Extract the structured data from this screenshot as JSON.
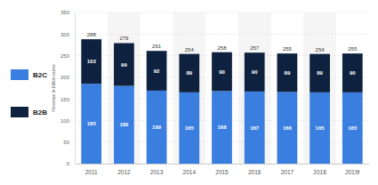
{
  "chart_data": {
    "type": "bar",
    "stacked": true,
    "data_labels": true,
    "grid": true,
    "legend": "left",
    "y_label": "Revenue in billion euros",
    "categories": [
      "2011",
      "2012",
      "2013",
      "2014",
      "2015",
      "2016",
      "2017",
      "2018",
      "2019f"
    ],
    "series": [
      {
        "name": "B2C",
        "color": "#3a7ee0",
        "values": [
          185,
          180,
          169,
          165,
          168,
          167,
          166,
          165,
          165
        ]
      },
      {
        "name": "B2B",
        "color": "#0e2240",
        "values": [
          103,
          99,
          92,
          89,
          90,
          90,
          89,
          89,
          90
        ]
      }
    ],
    "totals": [
      288,
      279,
      261,
      254,
      258,
      257,
      255,
      254,
      255
    ],
    "ylim": [
      0,
      350
    ],
    "yticks": [
      0,
      50,
      100,
      150,
      200,
      250,
      300,
      350
    ]
  }
}
